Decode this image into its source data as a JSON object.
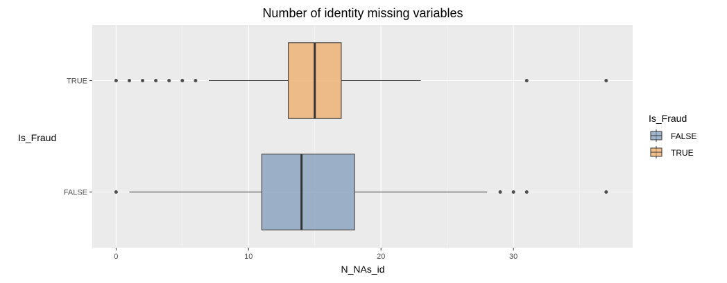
{
  "chart_data": {
    "type": "boxplot",
    "orientation": "horizontal",
    "title": "Number of identity missing variables",
    "xlabel": "N_NAs_id",
    "ylabel": "Is_Fraud",
    "xlim": [
      -1.8,
      39
    ],
    "x_ticks": [
      0,
      10,
      20,
      30
    ],
    "grid": true,
    "legend": {
      "title": "Is_Fraud",
      "position": "right"
    },
    "categories": [
      "FALSE",
      "TRUE"
    ],
    "series": [
      {
        "name": "FALSE",
        "color": "#7c98b8",
        "whisker_low": 1,
        "q1": 11,
        "median": 14,
        "q3": 18,
        "whisker_high": 28,
        "outliers": [
          0,
          29,
          30,
          31,
          37
        ]
      },
      {
        "name": "TRUE",
        "color": "#eca861",
        "whisker_low": 7,
        "q1": 13,
        "median": 15,
        "q3": 17,
        "whisker_high": 23,
        "outliers": [
          0,
          1,
          2,
          3,
          4,
          5,
          6,
          31,
          37
        ]
      }
    ]
  }
}
